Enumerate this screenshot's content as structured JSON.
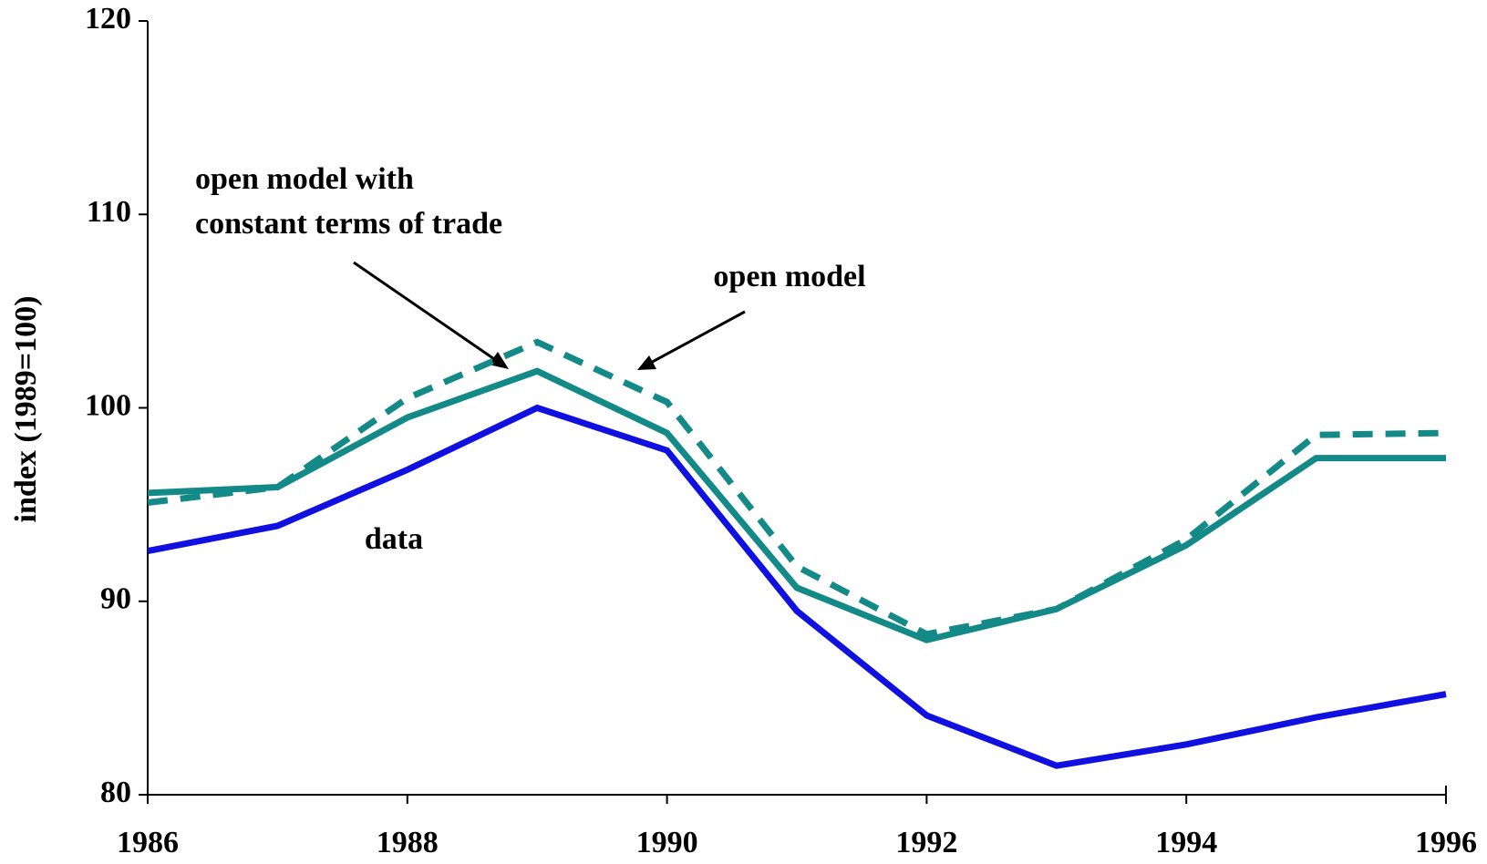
{
  "chart_data": {
    "type": "line",
    "y_label": "index (1989=100)",
    "x": [
      1986,
      1987,
      1988,
      1989,
      1990,
      1991,
      1992,
      1993,
      1994,
      1995,
      1996
    ],
    "series": [
      {
        "color": "#1010e0",
        "style": "solid",
        "values": [
          92.6,
          93.9,
          96.8,
          100,
          97.8,
          89.5,
          84.1,
          81.5,
          82.6,
          84.0,
          85.2
        ]
      },
      {
        "color": "#138a87",
        "style": "solid",
        "values": [
          95.6,
          95.9,
          99.5,
          101.9,
          98.7,
          90.7,
          88.0,
          89.6,
          92.9,
          97.4,
          97.4
        ]
      },
      {
        "color": "#138a87",
        "style": "dashed",
        "values": [
          95.1,
          95.9,
          100.5,
          103.4,
          100.3,
          91.8,
          88.3,
          89.6,
          93.2,
          98.6,
          98.7
        ]
      }
    ],
    "annotations": [
      {
        "lines": [
          "open model with",
          "constant terms of trade"
        ]
      },
      {
        "lines": [
          "open model"
        ]
      },
      {
        "lines": [
          "data"
        ]
      }
    ],
    "xlim": [
      1986,
      1996
    ],
    "xticks": [
      1986,
      1988,
      1990,
      1992,
      1994,
      1996
    ],
    "ylim": [
      80,
      120
    ],
    "yticks": [
      80,
      90,
      100,
      110,
      120
    ],
    "grid": false
  }
}
